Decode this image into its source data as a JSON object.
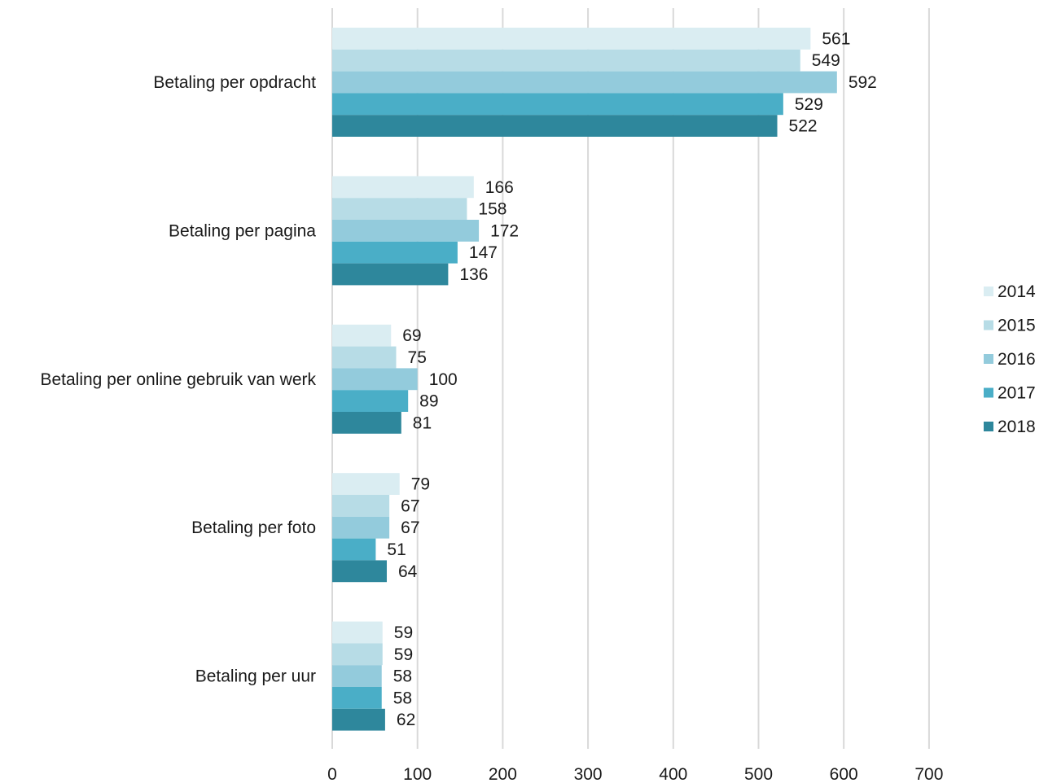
{
  "chart_data": {
    "type": "bar",
    "orientation": "horizontal",
    "categories": [
      "Betaling per opdracht",
      "Betaling per pagina",
      "Betaling per online gebruik van werk",
      "Betaling per foto",
      "Betaling per uur"
    ],
    "series": [
      {
        "name": "2014",
        "color": "#daedf2",
        "values": [
          561,
          166,
          69,
          79,
          59
        ]
      },
      {
        "name": "2015",
        "color": "#b7dce6",
        "values": [
          549,
          158,
          75,
          67,
          59
        ]
      },
      {
        "name": "2016",
        "color": "#93cbdc",
        "values": [
          592,
          172,
          100,
          67,
          58
        ]
      },
      {
        "name": "2017",
        "color": "#4aaec7",
        "values": [
          529,
          147,
          89,
          51,
          58
        ]
      },
      {
        "name": "2018",
        "color": "#2e879c",
        "values": [
          522,
          136,
          81,
          64,
          62
        ]
      }
    ],
    "xlim": [
      0,
      700
    ],
    "xticks": [
      0,
      100,
      200,
      300,
      400,
      500,
      600,
      700
    ],
    "title": "",
    "xlabel": "",
    "ylabel": "",
    "grid": "vertical",
    "legend": "right"
  }
}
